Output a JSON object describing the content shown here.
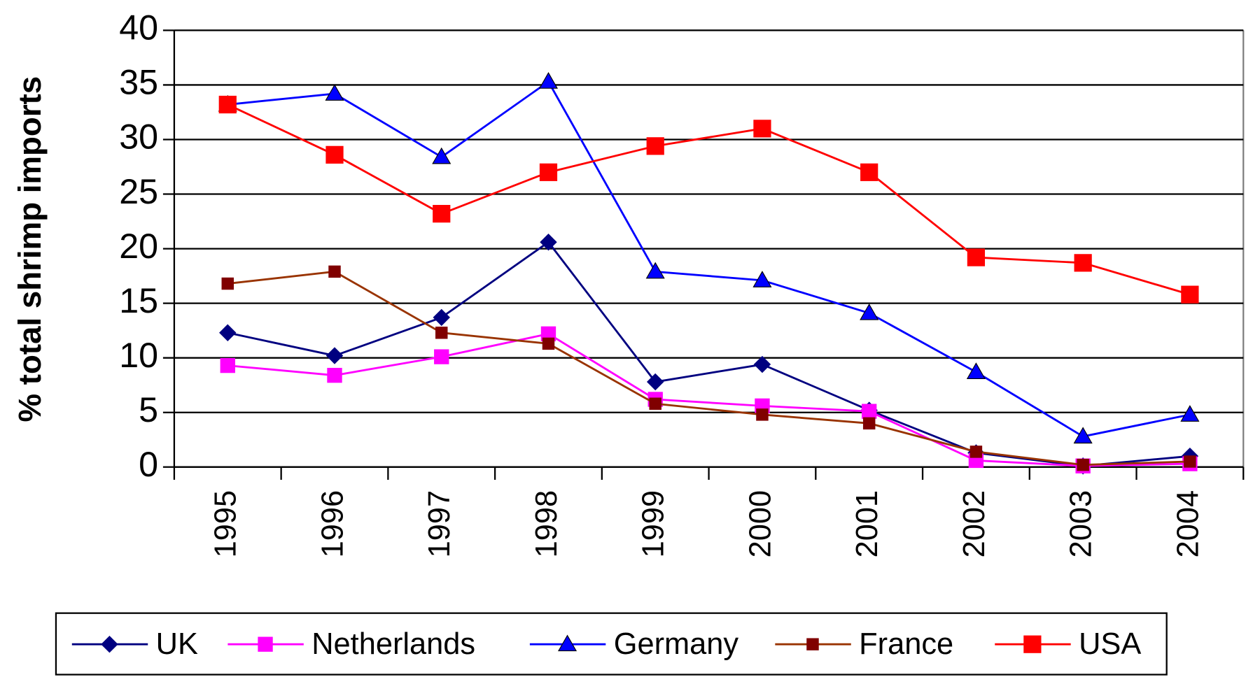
{
  "chart_data": {
    "type": "line",
    "y_label": "% total shrimp imports",
    "categories": [
      "1995",
      "1996",
      "1997",
      "1998",
      "1999",
      "2000",
      "2001",
      "2002",
      "2003",
      "2004"
    ],
    "series": [
      {
        "name": "UK",
        "color": "#000080",
        "marker": "diamond",
        "values": [
          12.3,
          10.2,
          13.7,
          20.6,
          7.8,
          9.4,
          5.2,
          1.3,
          0.1,
          1.0
        ]
      },
      {
        "name": "Netherlands",
        "color": "#ff00ff",
        "marker": "square",
        "values": [
          9.3,
          8.4,
          10.1,
          12.2,
          6.2,
          5.6,
          5.1,
          0.6,
          0.1,
          0.3
        ]
      },
      {
        "name": "Germany",
        "color": "#0000ff",
        "marker": "triangle",
        "values": [
          33.2,
          34.2,
          28.4,
          35.3,
          17.9,
          17.1,
          14.1,
          8.7,
          2.8,
          4.8
        ]
      },
      {
        "name": "France",
        "color": "#993300",
        "marker": "square",
        "values": [
          16.8,
          17.9,
          12.3,
          11.3,
          5.8,
          4.8,
          4.0,
          1.4,
          0.2,
          0.5
        ]
      },
      {
        "name": "USA",
        "color": "#ff0000",
        "marker": "square",
        "values": [
          33.2,
          28.6,
          23.2,
          27.0,
          29.4,
          31.0,
          27.0,
          19.2,
          18.7,
          15.8
        ]
      }
    ],
    "ylim": [
      0,
      40
    ],
    "yticks": [
      0,
      5,
      10,
      15,
      20,
      25,
      30,
      35,
      40
    ],
    "grid": true,
    "legend": "bottom"
  }
}
